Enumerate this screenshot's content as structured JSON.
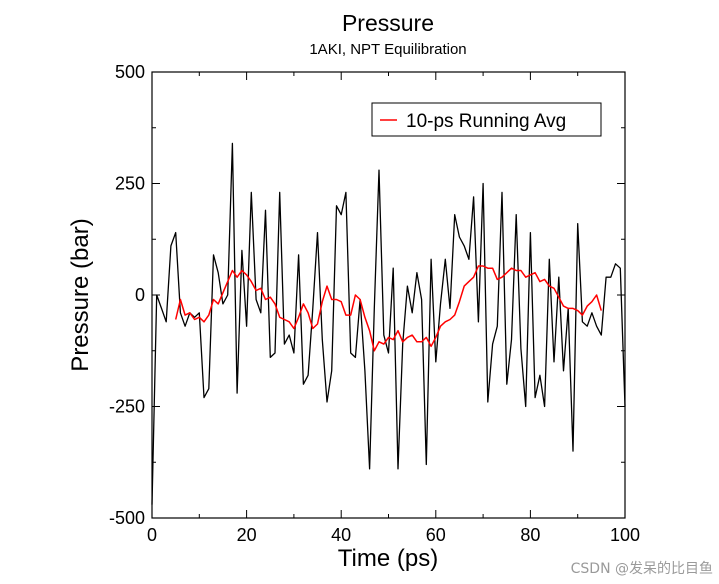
{
  "chart_data": {
    "type": "line",
    "title": "Pressure",
    "subtitle": "1AKI, NPT Equilibration",
    "xlabel": "Time (ps)",
    "ylabel": "Pressure (bar)",
    "xlim": [
      0,
      100
    ],
    "ylim": [
      -500,
      500
    ],
    "xticks": [
      0,
      20,
      40,
      60,
      80,
      100
    ],
    "xtick_labels": [
      "0",
      "20",
      "40",
      "60",
      "80",
      "100"
    ],
    "yticks": [
      -500,
      -250,
      0,
      250,
      500
    ],
    "ytick_labels": [
      "-500",
      "-250",
      "0",
      "250",
      "500"
    ],
    "grid": false,
    "legend": {
      "location": "top-right"
    },
    "series": [
      {
        "name": "Pressure",
        "color": "#000000",
        "show_in_legend": false,
        "x": [
          0,
          1,
          2,
          3,
          4,
          5,
          6,
          7,
          8,
          9,
          10,
          11,
          12,
          13,
          14,
          15,
          16,
          17,
          18,
          19,
          20,
          21,
          22,
          23,
          24,
          25,
          26,
          27,
          28,
          29,
          30,
          31,
          32,
          33,
          34,
          35,
          36,
          37,
          38,
          39,
          40,
          41,
          42,
          43,
          44,
          45,
          46,
          47,
          48,
          49,
          50,
          51,
          52,
          53,
          54,
          55,
          56,
          57,
          58,
          59,
          60,
          61,
          62,
          63,
          64,
          65,
          66,
          67,
          68,
          69,
          70,
          71,
          72,
          73,
          74,
          75,
          76,
          77,
          78,
          79,
          80,
          81,
          82,
          83,
          84,
          85,
          86,
          87,
          88,
          89,
          90,
          91,
          92,
          93,
          94,
          95,
          96,
          97,
          98,
          99,
          100
        ],
        "y": [
          -470,
          0,
          -30,
          -60,
          110,
          140,
          -40,
          -70,
          -40,
          -50,
          -40,
          -230,
          -210,
          90,
          50,
          -20,
          0,
          340,
          -220,
          100,
          -70,
          230,
          -10,
          -40,
          190,
          -140,
          -130,
          230,
          -110,
          -90,
          -130,
          90,
          -200,
          -180,
          -30,
          140,
          -100,
          -240,
          -170,
          200,
          180,
          230,
          -130,
          -140,
          -10,
          -170,
          -390,
          -30,
          280,
          -90,
          -130,
          60,
          -390,
          -110,
          20,
          -40,
          50,
          -10,
          -380,
          80,
          -150,
          -20,
          80,
          -30,
          180,
          130,
          110,
          80,
          220,
          -60,
          250,
          -240,
          -110,
          -70,
          230,
          -200,
          -100,
          180,
          -120,
          -250,
          140,
          -230,
          -180,
          -250,
          80,
          -150,
          40,
          -170,
          -30,
          -350,
          160,
          -60,
          -70,
          -40,
          -70,
          -90,
          40,
          40,
          70,
          60,
          -250
        ]
      },
      {
        "name": "10-ps Running Avg",
        "color": "#ff0000",
        "show_in_legend": true,
        "x": [
          5,
          6,
          7,
          8,
          9,
          10,
          11,
          12,
          13,
          14,
          15,
          16,
          17,
          18,
          19,
          20,
          21,
          22,
          23,
          24,
          25,
          26,
          27,
          28,
          29,
          30,
          31,
          32,
          33,
          34,
          35,
          36,
          37,
          38,
          39,
          40,
          41,
          42,
          43,
          44,
          45,
          46,
          47,
          48,
          49,
          50,
          51,
          52,
          53,
          54,
          55,
          56,
          57,
          58,
          59,
          60,
          61,
          62,
          63,
          64,
          65,
          66,
          67,
          68,
          69,
          70,
          71,
          72,
          73,
          74,
          75,
          76,
          77,
          78,
          79,
          80,
          81,
          82,
          83,
          84,
          85,
          86,
          87,
          88,
          89,
          90,
          91,
          92,
          93,
          94,
          95
        ],
        "y": [
          -55,
          -10,
          -45,
          -40,
          -55,
          -50,
          -60,
          -45,
          -10,
          -20,
          5,
          30,
          55,
          40,
          55,
          45,
          30,
          10,
          15,
          -10,
          -5,
          -20,
          -50,
          -55,
          -60,
          -75,
          -50,
          -20,
          -40,
          -75,
          -65,
          -15,
          20,
          -10,
          -10,
          -15,
          -45,
          -45,
          0,
          -10,
          -50,
          -80,
          -125,
          -105,
          -110,
          -95,
          -100,
          -80,
          -105,
          -95,
          -90,
          -105,
          -105,
          -95,
          -115,
          -95,
          -70,
          -60,
          -55,
          -45,
          -15,
          20,
          30,
          40,
          65,
          65,
          60,
          60,
          35,
          40,
          50,
          60,
          55,
          55,
          40,
          45,
          50,
          30,
          35,
          20,
          15,
          -5,
          -25,
          -30,
          -30,
          -35,
          -45,
          -25,
          -15,
          0,
          -35
        ]
      }
    ]
  },
  "watermark": "CSDN @发呆的比目鱼"
}
